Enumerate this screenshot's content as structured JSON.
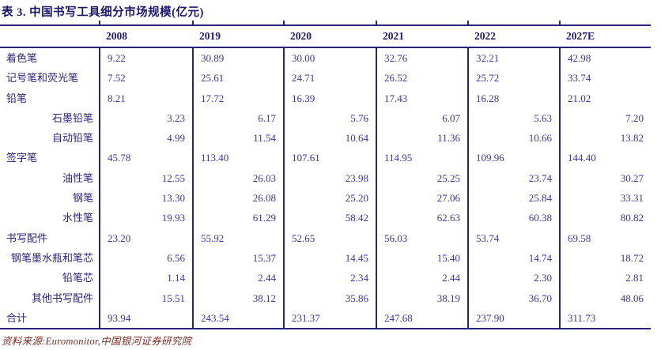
{
  "title": "表 3. 中国书写工具细分市场规模(亿元)",
  "table": {
    "columns": [
      "2008",
      "2019",
      "2020",
      "2021",
      "2022",
      "2027E"
    ],
    "rows": [
      {
        "label": "着色笔",
        "level": 0,
        "values": [
          "9.22",
          "30.89",
          "30.00",
          "32.76",
          "32.21",
          "42.98"
        ]
      },
      {
        "label": "记号笔和荧光笔",
        "level": 0,
        "values": [
          "7.52",
          "25.61",
          "24.71",
          "26.52",
          "25.72",
          "33.74"
        ]
      },
      {
        "label": "铅笔",
        "level": 0,
        "values": [
          "8.21",
          "17.72",
          "16.39",
          "17.43",
          "16.28",
          "21.02"
        ]
      },
      {
        "label": "石墨铅笔",
        "level": 1,
        "values": [
          "3.23",
          "6.17",
          "5.76",
          "6.07",
          "5.63",
          "7.20"
        ]
      },
      {
        "label": "自动铅笔",
        "level": 1,
        "values": [
          "4.99",
          "11.54",
          "10.64",
          "11.36",
          "10.66",
          "13.82"
        ]
      },
      {
        "label": "签字笔",
        "level": 0,
        "values": [
          "45.78",
          "113.40",
          "107.61",
          "114.95",
          "109.96",
          "144.40"
        ]
      },
      {
        "label": "油性笔",
        "level": 1,
        "values": [
          "12.55",
          "26.03",
          "23.98",
          "25.25",
          "23.74",
          "30.27"
        ]
      },
      {
        "label": "钢笔",
        "level": 1,
        "values": [
          "13.30",
          "26.08",
          "25.20",
          "27.06",
          "25.84",
          "33.31"
        ]
      },
      {
        "label": "水性笔",
        "level": 1,
        "values": [
          "19.93",
          "61.29",
          "58.42",
          "62.63",
          "60.38",
          "80.82"
        ]
      },
      {
        "label": "书写配件",
        "level": 0,
        "values": [
          "23.20",
          "55.92",
          "52.65",
          "56.03",
          "53.74",
          "69.58"
        ]
      },
      {
        "label": "钢笔墨水瓶和笔芯",
        "level": 1,
        "values": [
          "6.56",
          "15.37",
          "14.45",
          "15.40",
          "14.74",
          "18.72"
        ]
      },
      {
        "label": "铅笔芯",
        "level": 1,
        "values": [
          "1.14",
          "2.44",
          "2.34",
          "2.44",
          "2.30",
          "2.81"
        ]
      },
      {
        "label": "其他书写配件",
        "level": 1,
        "values": [
          "15.51",
          "38.12",
          "35.86",
          "38.19",
          "36.70",
          "48.06"
        ]
      },
      {
        "label": "合计",
        "level": 0,
        "values": [
          "93.94",
          "243.54",
          "231.37",
          "247.68",
          "237.90",
          "311.73"
        ]
      }
    ]
  },
  "source": "资料来源:Euromonitor,中国银河证券研究院",
  "colors": {
    "border_navy": "#29247b",
    "title_text": "#1a1569",
    "label_text": "#2b2478",
    "value_text": "#39379a",
    "source_text": "#7c2a22"
  }
}
